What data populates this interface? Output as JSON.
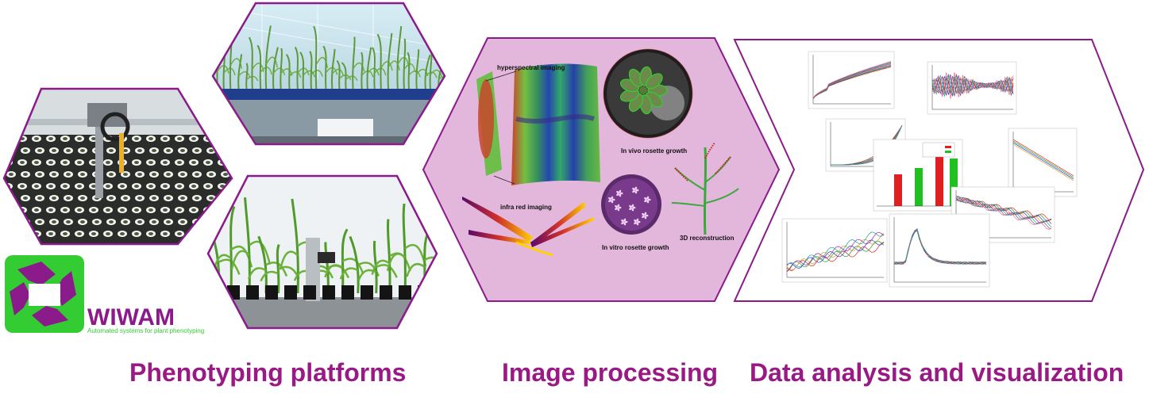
{
  "captions": {
    "platforms": "Phenotyping platforms",
    "processing": "Image processing",
    "analysis": "Data analysis and visualization"
  },
  "logo": {
    "name": "WIWAM",
    "tagline": "Automated systems for plant phenotyping",
    "colors": {
      "green": "#33cc33",
      "purple": "#8b1a8b"
    }
  },
  "processing_labels": {
    "hyperspectral": "hyperspectral imaging",
    "invivo": "In vivo rosette growth",
    "infrared": "infra red imaging",
    "invitro": "In vitro rosette growth",
    "reconstruction": "3D reconstruction"
  },
  "colors": {
    "accent": "#9a1a85",
    "hex_border": "#8b1a8b",
    "processing_fill": "#e3b6dc"
  }
}
